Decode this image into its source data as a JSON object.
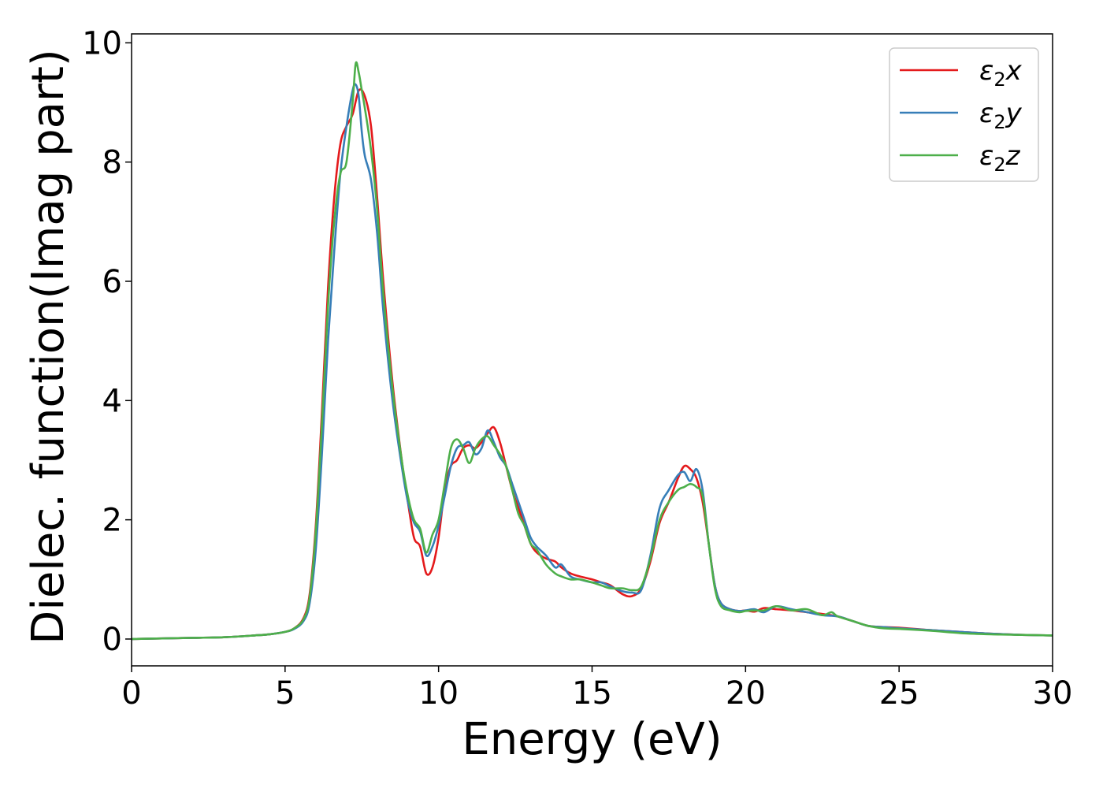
{
  "chart_data": {
    "type": "line",
    "title": "",
    "xlabel": "Energy (eV)",
    "ylabel": "Dielec. function(Imag part)",
    "xlim": [
      0,
      30
    ],
    "ylim": [
      -0.45,
      10.15
    ],
    "xticks": [
      0,
      5,
      10,
      15,
      20,
      25,
      30
    ],
    "yticks": [
      0,
      2,
      4,
      6,
      8,
      10
    ],
    "grid": false,
    "legend_position": "top-right",
    "series": [
      {
        "name": "ε₂x",
        "legend": {
          "main": "ε",
          "sub": "2",
          "suffix": "x"
        },
        "color": "#e41a1c",
        "x": [
          0,
          1,
          2,
          3,
          4,
          4.5,
          5,
          5.3,
          5.6,
          5.8,
          6.0,
          6.2,
          6.4,
          6.6,
          6.8,
          7.0,
          7.2,
          7.4,
          7.6,
          7.8,
          8.0,
          8.2,
          8.5,
          8.8,
          9.0,
          9.2,
          9.4,
          9.6,
          9.8,
          10.0,
          10.2,
          10.4,
          10.6,
          10.8,
          11.0,
          11.2,
          11.4,
          11.6,
          11.8,
          12.0,
          12.2,
          12.4,
          12.6,
          12.8,
          13.0,
          13.2,
          13.5,
          13.8,
          14.0,
          14.3,
          14.6,
          15.0,
          15.3,
          15.6,
          16.0,
          16.3,
          16.6,
          16.9,
          17.2,
          17.5,
          17.8,
          18.0,
          18.2,
          18.4,
          18.6,
          18.8,
          19.0,
          19.2,
          19.5,
          19.8,
          20.0,
          20.3,
          20.6,
          21.0,
          21.5,
          22.0,
          22.5,
          23.0,
          23.5,
          24.0,
          24.5,
          25.0,
          26.0,
          27.0,
          28.0,
          29.0,
          30.0
        ],
        "values": [
          0.0,
          0.01,
          0.02,
          0.03,
          0.06,
          0.08,
          0.12,
          0.18,
          0.35,
          0.75,
          1.9,
          3.8,
          5.9,
          7.4,
          8.3,
          8.6,
          8.8,
          9.2,
          9.1,
          8.6,
          7.4,
          6.0,
          4.3,
          3.0,
          2.3,
          1.7,
          1.55,
          1.1,
          1.2,
          1.7,
          2.5,
          2.9,
          3.0,
          3.2,
          3.25,
          3.2,
          3.3,
          3.45,
          3.55,
          3.3,
          2.9,
          2.5,
          2.2,
          1.9,
          1.6,
          1.45,
          1.35,
          1.3,
          1.2,
          1.1,
          1.05,
          1.0,
          0.95,
          0.9,
          0.75,
          0.72,
          0.85,
          1.3,
          1.95,
          2.3,
          2.7,
          2.9,
          2.85,
          2.7,
          2.3,
          1.6,
          0.9,
          0.6,
          0.5,
          0.47,
          0.48,
          0.46,
          0.52,
          0.5,
          0.48,
          0.45,
          0.42,
          0.38,
          0.3,
          0.22,
          0.2,
          0.19,
          0.15,
          0.12,
          0.09,
          0.07,
          0.06
        ]
      },
      {
        "name": "ε₂y",
        "legend": {
          "main": "ε",
          "sub": "2",
          "suffix": "y"
        },
        "color": "#377eb8",
        "x": [
          0,
          1,
          2,
          3,
          4,
          4.5,
          5,
          5.3,
          5.6,
          5.8,
          6.0,
          6.2,
          6.4,
          6.6,
          6.8,
          7.0,
          7.2,
          7.3,
          7.4,
          7.5,
          7.6,
          7.8,
          8.0,
          8.2,
          8.5,
          8.8,
          9.0,
          9.2,
          9.4,
          9.6,
          9.8,
          10.0,
          10.2,
          10.4,
          10.6,
          10.8,
          11.0,
          11.2,
          11.4,
          11.6,
          11.8,
          12.0,
          12.2,
          12.4,
          12.6,
          12.8,
          13.0,
          13.2,
          13.5,
          13.8,
          14.0,
          14.3,
          14.6,
          15.0,
          15.3,
          15.6,
          16.0,
          16.3,
          16.6,
          16.9,
          17.2,
          17.5,
          17.8,
          18.0,
          18.2,
          18.4,
          18.6,
          18.8,
          19.0,
          19.2,
          19.5,
          19.8,
          20.0,
          20.3,
          20.6,
          21.0,
          21.5,
          22.0,
          22.5,
          23.0,
          23.5,
          24.0,
          24.5,
          25.0,
          26.0,
          27.0,
          28.0,
          29.0,
          30.0
        ],
        "values": [
          0.0,
          0.01,
          0.02,
          0.03,
          0.06,
          0.08,
          0.12,
          0.17,
          0.3,
          0.6,
          1.5,
          3.1,
          5.0,
          6.5,
          7.8,
          8.6,
          9.2,
          9.3,
          9.1,
          8.5,
          8.1,
          7.7,
          6.8,
          5.5,
          4.0,
          2.9,
          2.3,
          1.95,
          1.8,
          1.4,
          1.55,
          1.9,
          2.4,
          2.9,
          3.2,
          3.25,
          3.3,
          3.1,
          3.2,
          3.5,
          3.3,
          3.05,
          2.9,
          2.6,
          2.3,
          2.0,
          1.7,
          1.55,
          1.4,
          1.2,
          1.25,
          1.05,
          1.0,
          0.95,
          0.95,
          0.88,
          0.8,
          0.78,
          0.82,
          1.4,
          2.2,
          2.5,
          2.75,
          2.8,
          2.65,
          2.85,
          2.5,
          1.6,
          0.9,
          0.6,
          0.5,
          0.47,
          0.48,
          0.5,
          0.45,
          0.55,
          0.5,
          0.45,
          0.4,
          0.38,
          0.3,
          0.22,
          0.2,
          0.18,
          0.15,
          0.12,
          0.09,
          0.07,
          0.06
        ]
      },
      {
        "name": "ε₂z",
        "legend": {
          "main": "ε",
          "sub": "2",
          "suffix": "z"
        },
        "color": "#4daf4a",
        "x": [
          0,
          1,
          2,
          3,
          4,
          4.5,
          5,
          5.3,
          5.6,
          5.8,
          6.0,
          6.2,
          6.4,
          6.6,
          6.8,
          7.0,
          7.2,
          7.3,
          7.4,
          7.5,
          7.6,
          7.8,
          8.0,
          8.2,
          8.5,
          8.8,
          9.0,
          9.2,
          9.4,
          9.6,
          9.8,
          10.0,
          10.2,
          10.4,
          10.6,
          10.8,
          11.0,
          11.2,
          11.4,
          11.6,
          11.8,
          12.0,
          12.2,
          12.4,
          12.6,
          12.8,
          13.0,
          13.2,
          13.5,
          13.8,
          14.0,
          14.3,
          14.6,
          15.0,
          15.3,
          15.6,
          16.0,
          16.3,
          16.6,
          16.9,
          17.2,
          17.5,
          17.8,
          18.0,
          18.2,
          18.4,
          18.6,
          18.8,
          19.0,
          19.2,
          19.5,
          19.8,
          20.0,
          20.3,
          20.6,
          21.0,
          21.5,
          22.0,
          22.5,
          22.8,
          23.0,
          23.5,
          24.0,
          24.5,
          25.0,
          26.0,
          27.0,
          28.0,
          29.0,
          30.0
        ],
        "values": [
          0.0,
          0.01,
          0.02,
          0.03,
          0.06,
          0.08,
          0.12,
          0.18,
          0.33,
          0.7,
          1.8,
          3.6,
          5.6,
          7.0,
          7.8,
          8.0,
          9.0,
          9.65,
          9.5,
          9.2,
          8.9,
          8.2,
          7.2,
          5.8,
          4.2,
          3.0,
          2.4,
          2.0,
          1.85,
          1.45,
          1.75,
          2.0,
          2.6,
          3.2,
          3.35,
          3.2,
          2.95,
          3.2,
          3.35,
          3.4,
          3.25,
          3.1,
          2.9,
          2.5,
          2.1,
          1.9,
          1.6,
          1.5,
          1.25,
          1.1,
          1.05,
          1.0,
          1.0,
          0.95,
          0.9,
          0.85,
          0.85,
          0.82,
          0.88,
          1.35,
          2.0,
          2.3,
          2.5,
          2.55,
          2.6,
          2.55,
          2.4,
          1.6,
          0.85,
          0.55,
          0.48,
          0.45,
          0.47,
          0.48,
          0.48,
          0.55,
          0.48,
          0.5,
          0.4,
          0.45,
          0.38,
          0.3,
          0.22,
          0.18,
          0.17,
          0.14,
          0.1,
          0.08,
          0.07,
          0.06
        ]
      }
    ]
  }
}
